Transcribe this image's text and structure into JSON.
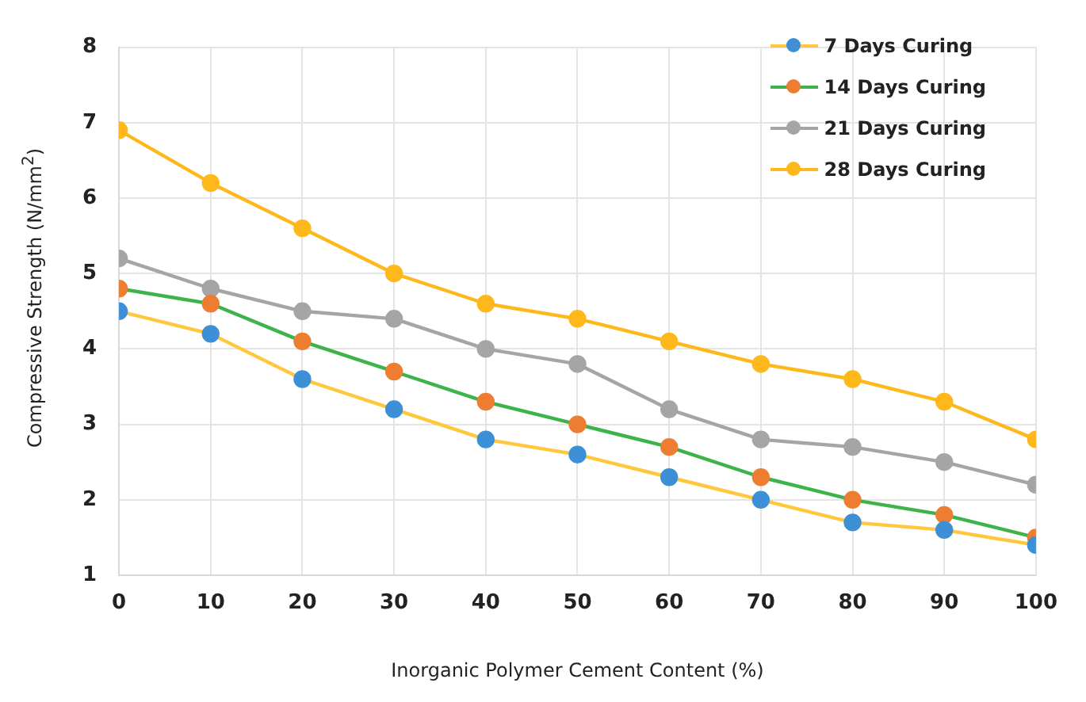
{
  "chart_data": {
    "type": "line",
    "xlabel": "Inorganic Polymer Cement Content (%)",
    "ylabel": "Compressive Strength (N/mm$^{2}$)",
    "x": [
      0,
      10,
      20,
      30,
      40,
      50,
      60,
      70,
      80,
      90,
      100
    ],
    "xlim": [
      0,
      100
    ],
    "xticks": [
      0,
      10,
      20,
      30,
      40,
      50,
      60,
      70,
      80,
      90,
      100
    ],
    "ylim": [
      1,
      8
    ],
    "yticks": [
      1,
      2,
      3,
      4,
      5,
      6,
      7,
      8
    ],
    "grid": true,
    "legend": "top right",
    "marker": "circle",
    "line_style": "solid",
    "series": [
      {
        "name": "7 Days Curing",
        "color": "#ffc83c",
        "colors": [
          "#3d8fd6",
          "#3d8fd6",
          "#3d8fd6",
          "#3d8fd6",
          "#3d8fd6",
          "#3d8fd6",
          "#3d8fd6",
          "#3d8fd6",
          "#3d8fd6",
          "#3d8fd6",
          "#3d8fd6"
        ],
        "values": [
          4.5,
          4.2,
          3.6,
          3.2,
          2.8,
          2.6,
          2.3,
          2.0,
          1.7,
          1.6,
          1.4
        ]
      },
      {
        "name": "14 Days Curing",
        "color": "#3cb44b",
        "colors": [
          "#ed7d31",
          "#ed7d31",
          "#ed7d31",
          "#ed7d31",
          "#ed7d31",
          "#ed7d31",
          "#ed7d31",
          "#ed7d31",
          "#ed7d31",
          "#ed7d31",
          "#ed7d31"
        ],
        "values": [
          4.8,
          4.6,
          4.1,
          3.7,
          3.3,
          3.0,
          2.7,
          2.3,
          2.0,
          1.8,
          1.5
        ]
      },
      {
        "name": "21 Days Curing",
        "color": "#a5a5a5",
        "colors": [
          "#a5a5a5",
          "#a5a5a5",
          "#a5a5a5",
          "#a5a5a5",
          "#a5a5a5",
          "#a5a5a5",
          "#a5a5a5",
          "#a5a5a5",
          "#a5a5a5",
          "#a5a5a5",
          "#a5a5a5"
        ],
        "values": [
          5.2,
          4.8,
          4.5,
          4.4,
          4.0,
          3.8,
          3.2,
          2.8,
          2.7,
          2.5,
          2.2
        ]
      },
      {
        "name": "28 Days Curing",
        "color": "#ffb81c",
        "colors": [
          "#ffb81c",
          "#ffb81c",
          "#ffb81c",
          "#ffb81c",
          "#ffb81c",
          "#ffb81c",
          "#ffb81c",
          "#ffb81c",
          "#ffb81c",
          "#ffb81c",
          "#ffb81c"
        ],
        "values": [
          6.9,
          6.2,
          5.6,
          5.0,
          4.6,
          4.4,
          4.1,
          3.8,
          3.6,
          3.3,
          2.8
        ]
      }
    ]
  }
}
